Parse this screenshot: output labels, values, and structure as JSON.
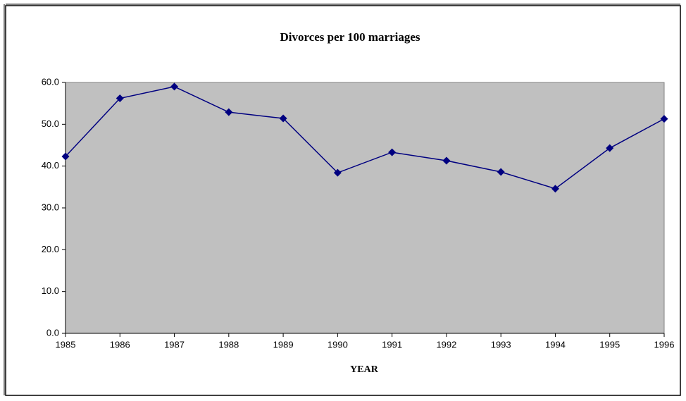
{
  "chart_data": {
    "type": "line",
    "title": "Divorces per 100 marriages",
    "x_label": "YEAR",
    "categories": [
      "1985",
      "1986",
      "1987",
      "1988",
      "1989",
      "1990",
      "1991",
      "1992",
      "1993",
      "1994",
      "1995",
      "1996"
    ],
    "values": [
      42.3,
      56.2,
      59.0,
      52.9,
      51.4,
      38.4,
      43.3,
      41.3,
      38.6,
      34.6,
      44.3,
      51.3
    ],
    "color": "#000080",
    "plot_background": "#c0c0c0",
    "ylim": [
      0,
      60
    ],
    "yticks": [
      {
        "value": 0,
        "label": "0.0"
      },
      {
        "value": 10,
        "label": "10.0"
      },
      {
        "value": 20,
        "label": "20.0"
      },
      {
        "value": 30,
        "label": "30.0"
      },
      {
        "value": 40,
        "label": "40.0"
      },
      {
        "value": 50,
        "label": "50.0"
      },
      {
        "value": 60,
        "label": "60.0"
      }
    ],
    "grid": false
  }
}
